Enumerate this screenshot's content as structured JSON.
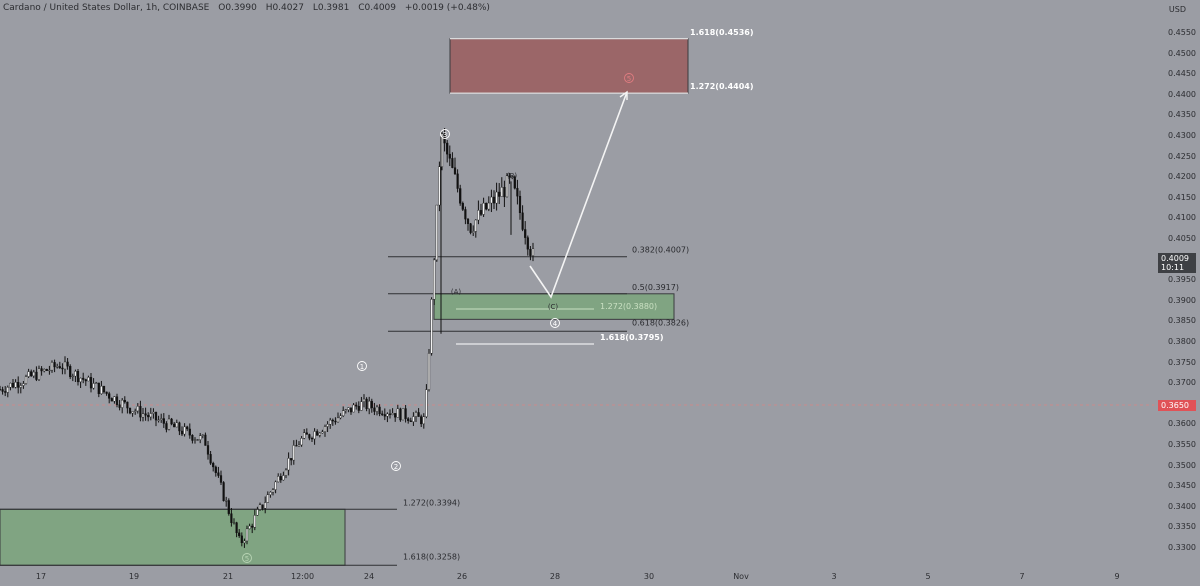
{
  "header": {
    "symbol": "Cardano / United States Dollar, 1h, COINBASE",
    "open": "O0.3990",
    "high": "H0.4027",
    "low": "L0.3981",
    "close": "C0.4009",
    "change": "+0.0019 (+0.48%)"
  },
  "price_axis": {
    "currency": "USD",
    "ticks": [
      "0.4550",
      "0.4500",
      "0.4450",
      "0.4400",
      "0.4350",
      "0.4300",
      "0.4250",
      "0.4200",
      "0.4150",
      "0.4100",
      "0.4050",
      "0.3950",
      "0.3900",
      "0.3850",
      "0.3800",
      "0.3750",
      "0.3700",
      "0.3600",
      "0.3550",
      "0.3500",
      "0.3450",
      "0.3400",
      "0.3350",
      "0.3300"
    ],
    "current_price": "0.4009",
    "countdown": "10:11",
    "marked_price": "0.3650",
    "current_color": "#3e4044",
    "marked_color": "#e05257"
  },
  "time_axis": {
    "ticks": [
      "17",
      "19",
      "21",
      "12:00",
      "24",
      "26",
      "28",
      "30",
      "Nov",
      "3",
      "5",
      "7",
      "9"
    ]
  },
  "chart_data": {
    "type": "candlestick",
    "symbol": "ADA/USD",
    "interval": "1h",
    "ylim": [
      0.327,
      0.459
    ],
    "price_path": [
      [
        "17",
        0.3685
      ],
      [
        "18",
        0.3745
      ],
      [
        "19",
        0.364
      ],
      [
        "20",
        0.356
      ],
      [
        "21",
        0.331
      ],
      [
        "22",
        0.356
      ],
      [
        "23",
        0.365
      ],
      [
        "24",
        0.361
      ],
      [
        "25",
        0.43
      ],
      [
        "26",
        0.408
      ],
      [
        "27",
        0.419
      ],
      [
        "27",
        0.399
      ]
    ],
    "fib_levels": [
      {
        "label": "1.618(0.4536)",
        "price": 0.4536,
        "color": "#ffffff"
      },
      {
        "label": "1.272(0.4404)",
        "price": 0.4404,
        "color": "#ffffff"
      },
      {
        "label": "0.382(0.4007)",
        "price": 0.4007,
        "color": "#2a2b2f"
      },
      {
        "label": "0.5(0.3917)",
        "price": 0.3917,
        "color": "#2a2b2f"
      },
      {
        "label": "1.272(0.3880)",
        "price": 0.388,
        "color": "#c9e0c2"
      },
      {
        "label": "0.618(0.3826)",
        "price": 0.3826,
        "color": "#2a2b2f"
      },
      {
        "label": "1.618(0.3795)",
        "price": 0.3795,
        "color": "#ffffff"
      },
      {
        "label": "1.272(0.3394)",
        "price": 0.3394,
        "color": "#2a2b2f"
      },
      {
        "label": "1.618(0.3258)",
        "price": 0.3258,
        "color": "#2a2b2f"
      }
    ],
    "wave_labels": [
      "1",
      "2",
      "3",
      "4",
      "5",
      "5",
      "(A)",
      "(B)",
      "(C)"
    ],
    "zones": {
      "target_color": "#9b6668",
      "support_color": "#80a482"
    }
  }
}
